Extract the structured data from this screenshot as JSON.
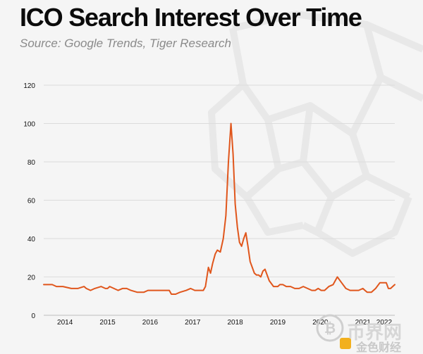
{
  "header": {
    "title": "ICO Search Interest Over Time",
    "subtitle": "Source: Google Trends, Tiger Research"
  },
  "watermark": {
    "badge_text": "币界网",
    "badge_text_2": "金色财经",
    "badge_icon": "bitcoin-logo-icon",
    "background_logo": "tiger-head-logo-icon"
  },
  "colors": {
    "line": "#e0561c",
    "grid": "#dcdcdc",
    "text": "#111111",
    "muted": "#8a8a8a"
  },
  "chart_data": {
    "type": "line",
    "title": "ICO Search Interest Over Time",
    "subtitle": "Source: Google Trends, Tiger Research",
    "xlabel": "",
    "ylabel": "",
    "ylim": [
      0,
      120
    ],
    "yticks": [
      0,
      20,
      40,
      60,
      80,
      100,
      120
    ],
    "xlim": [
      2013.5,
      2021.75
    ],
    "xticks": [
      {
        "label": "2014",
        "x": 2014
      },
      {
        "label": "2015",
        "x": 2015
      },
      {
        "label": "2016",
        "x": 2016
      },
      {
        "label": "2017",
        "x": 2017
      },
      {
        "label": "2018",
        "x": 2018
      },
      {
        "label": "2019",
        "x": 2019
      },
      {
        "label": "2020",
        "x": 2020
      },
      {
        "label": "2021",
        "x": 2021
      },
      {
        "label": "2022",
        "x": 2021.5
      }
    ],
    "grid": "horizontal",
    "series": [
      {
        "x": [
          2013.5,
          2013.7,
          2013.8,
          2013.95,
          2014.15,
          2014.25,
          2014.3,
          2014.45,
          2014.5,
          2014.6,
          2014.7,
          2014.85,
          2014.95,
          2015.0,
          2015.05,
          2015.15,
          2015.25,
          2015.35,
          2015.45,
          2015.55,
          2015.7,
          2015.85,
          2015.95,
          2016.05,
          2016.15,
          2016.3,
          2016.45,
          2016.5,
          2016.6,
          2016.7,
          2016.85,
          2016.95,
          2017.05,
          2017.1,
          2017.15,
          2017.2,
          2017.25,
          2017.3,
          2017.37,
          2017.42,
          2017.47,
          2017.53,
          2017.58,
          2017.65,
          2017.72,
          2017.78,
          2017.84,
          2017.9,
          2017.95,
          2018.0,
          2018.05,
          2018.1,
          2018.15,
          2018.2,
          2018.25,
          2018.3,
          2018.35,
          2018.4,
          2018.45,
          2018.5,
          2018.55,
          2018.6,
          2018.65,
          2018.7,
          2018.8,
          2018.9,
          2018.95,
          2019.0,
          2019.05,
          2019.12,
          2019.2,
          2019.3,
          2019.4,
          2019.5,
          2019.6,
          2019.7,
          2019.8,
          2019.88,
          2019.95,
          2020.02,
          2020.1,
          2020.2,
          2020.3,
          2020.4,
          2020.5,
          2020.6,
          2020.7,
          2020.8,
          2020.9,
          2021.0,
          2021.05,
          2021.1,
          2021.2,
          2021.3,
          2021.4,
          2021.5,
          2021.55,
          2021.6,
          2021.65,
          2021.7,
          2021.75
        ],
        "y": [
          16,
          16,
          15,
          15,
          14,
          14,
          14,
          15,
          14,
          13,
          14,
          15,
          14,
          14,
          15,
          14,
          13,
          14,
          14,
          13,
          12,
          12,
          13,
          13,
          13,
          13,
          13,
          11,
          11,
          12,
          13,
          14,
          13,
          13,
          13,
          13,
          13,
          15,
          25,
          22,
          27,
          32,
          34,
          33,
          40,
          52,
          80,
          100,
          84,
          58,
          46,
          38,
          36,
          40,
          43,
          36,
          28,
          25,
          22,
          21,
          21,
          20,
          23,
          24,
          18,
          15,
          15,
          15,
          16,
          16,
          15,
          15,
          14,
          14,
          15,
          14,
          13,
          13,
          14,
          13,
          13,
          15,
          16,
          20,
          17,
          14,
          13,
          13,
          13,
          14,
          13,
          12,
          12,
          14,
          17,
          17,
          17,
          14,
          14,
          15,
          16
        ]
      }
    ]
  }
}
